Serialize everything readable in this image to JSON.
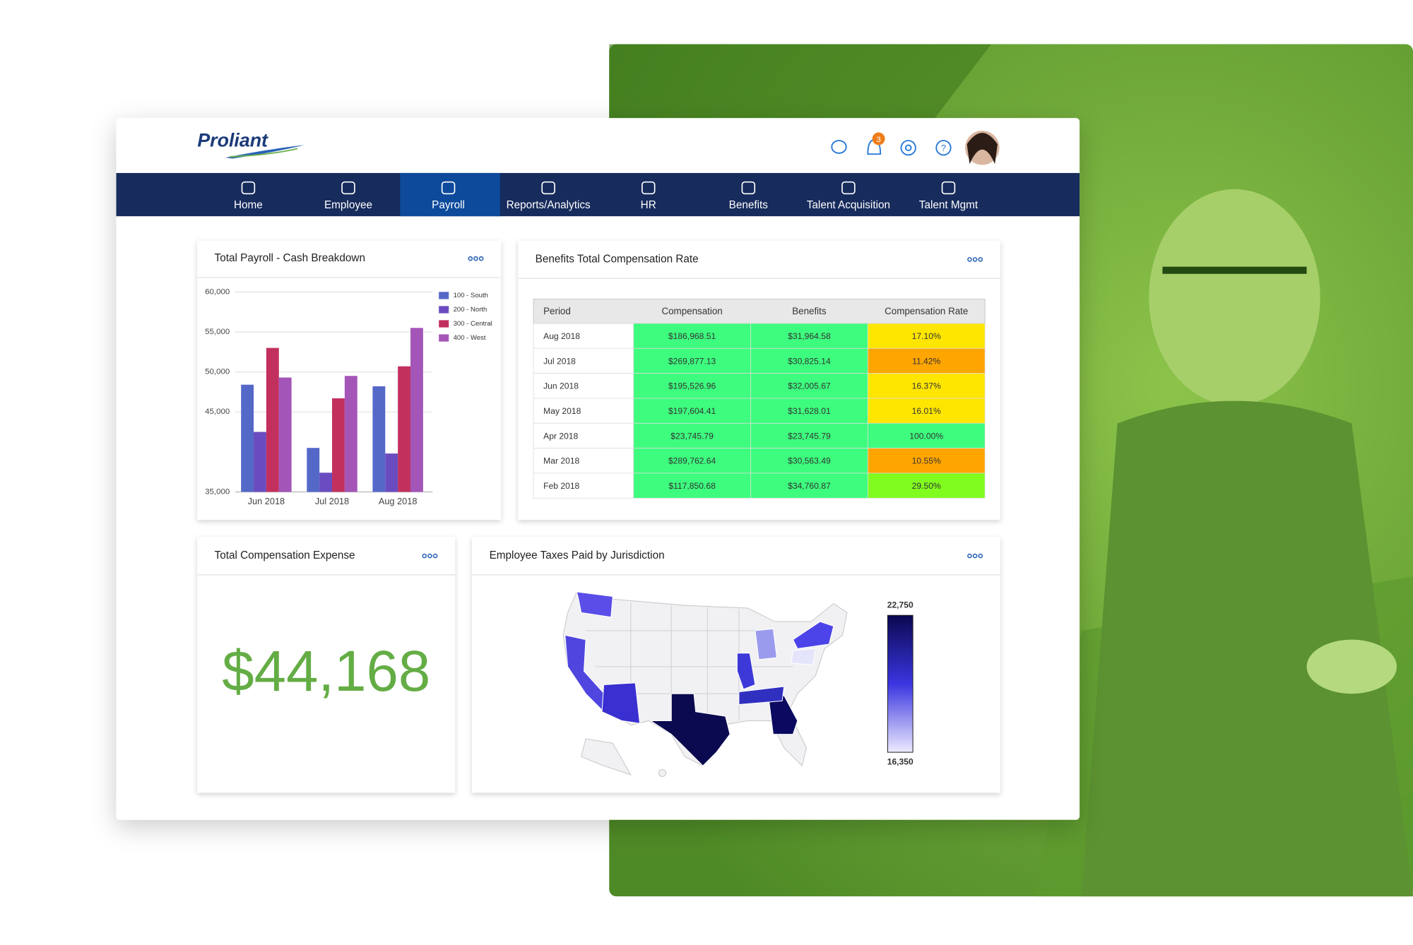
{
  "header": {
    "logo": "Proliant",
    "notification_count": "3"
  },
  "nav": {
    "items": [
      "Home",
      "Employee",
      "Payroll",
      "Reports/Analytics",
      "HR",
      "Benefits",
      "Talent Acquisition",
      "Talent Mgmt"
    ],
    "active_index": 2
  },
  "chart_data": {
    "type": "bar",
    "title": "Total Payroll - Cash Breakdown",
    "categories": [
      "Jun 2018",
      "Jul 2018",
      "Aug 2018"
    ],
    "series": [
      {
        "name": "100 - South",
        "color": "#5468c8",
        "values": [
          48400,
          40500,
          48200
        ]
      },
      {
        "name": "200 - North",
        "color": "#6a4cc0",
        "values": [
          42500,
          37400,
          39800
        ]
      },
      {
        "name": "300 - Central",
        "color": "#c2305e",
        "values": [
          53000,
          46700,
          50700
        ]
      },
      {
        "name": "400 - West",
        "color": "#a455b8",
        "values": [
          49300,
          49500,
          55500
        ]
      }
    ],
    "ylim": [
      35000,
      60000
    ],
    "yticks": [
      {
        "value": 35000,
        "label": "35,000"
      },
      {
        "value": 45000,
        "label": "45,000"
      },
      {
        "value": 50000,
        "label": "50,000"
      },
      {
        "value": 55000,
        "label": "55,000"
      },
      {
        "value": 60000,
        "label": "60,000"
      }
    ],
    "grid": true,
    "legend": "top-right"
  },
  "compensation_table": {
    "title": "Benefits Total Compensation Rate",
    "columns": [
      "Period",
      "Compensation",
      "Benefits",
      "Compensation Rate"
    ],
    "rows": [
      [
        "Aug 2018",
        "$186,968.51",
        "$31,964.58",
        "17.10%"
      ],
      [
        "Jul 2018",
        "$269,877.13",
        "$30,825.14",
        "11.42%"
      ],
      [
        "Jun 2018",
        "$195,526.96",
        "$32,005.67",
        "16.37%"
      ],
      [
        "May 2018",
        "$197,604.41",
        "$31,628.01",
        "16.01%"
      ],
      [
        "Apr 2018",
        "$23,745.79",
        "$23,745.79",
        "100.00%"
      ],
      [
        "Mar 2018",
        "$289,762.64",
        "$30,563.49",
        "10.55%"
      ],
      [
        "Feb 2018",
        "$117,850.68",
        "$34,760.87",
        "29.50%"
      ]
    ],
    "value_color": "#3dfc7e",
    "rate_colors": [
      "#ffe600",
      "#ffa500",
      "#ffe600",
      "#ffe600",
      "#3dfc7e",
      "#ffa500",
      "#80fc1e"
    ]
  },
  "total_compensation": {
    "title": "Total Compensation Expense",
    "amount": "$44,168"
  },
  "tax_map": {
    "title": "Employee Taxes Paid by Jurisdiction",
    "scale_max": "22,750",
    "scale_min": "16,350"
  }
}
